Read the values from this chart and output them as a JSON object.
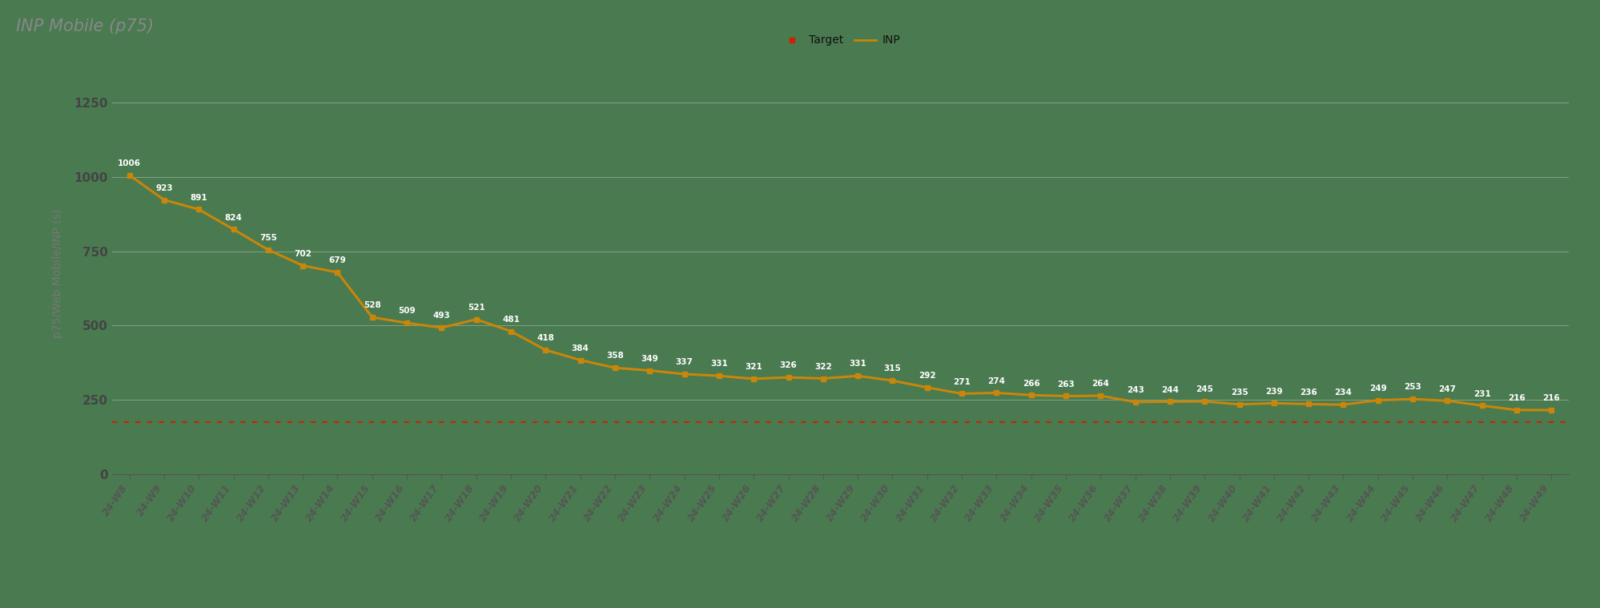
{
  "title": "INP Mobile (p75)",
  "ylabel": "p75/Web Mobile/INP (s)",
  "background_color": "#4a7a50",
  "target_value": 175,
  "weeks": [
    "24-W8",
    "24-W9",
    "24-W10",
    "24-W11",
    "24-W12",
    "24-W13",
    "24-W14",
    "24-W15",
    "24-W16",
    "24-W17",
    "24-W18",
    "24-W19",
    "24-W20",
    "24-W21",
    "24-W22",
    "24-W23",
    "24-W24",
    "24-W25",
    "24-W26",
    "24-W27",
    "24-W28",
    "24-W29",
    "24-W30",
    "24-W31",
    "24-W32",
    "24-W33",
    "24-W34",
    "24-W35",
    "24-W36",
    "24-W37",
    "24-W38",
    "24-W39",
    "24-W40",
    "24-W41",
    "24-W42",
    "24-W43",
    "24-W44",
    "24-W45",
    "24-W46",
    "24-W47",
    "24-W48",
    "24-W49"
  ],
  "inp_values": [
    1006,
    923,
    891,
    824,
    755,
    702,
    679,
    528,
    509,
    493,
    521,
    481,
    418,
    384,
    358,
    349,
    337,
    331,
    321,
    326,
    322,
    331,
    315,
    292,
    271,
    274,
    266,
    263,
    264,
    243,
    244,
    245,
    235,
    239,
    236,
    234,
    249,
    253,
    247,
    231,
    216,
    216
  ],
  "line_color": "#c8860a",
  "marker_color": "#c8860a",
  "target_color": "#cc2200",
  "ylim": [
    0,
    1350
  ],
  "yticks": [
    0,
    250,
    500,
    750,
    1000,
    1250
  ],
  "annotation_color": "#ffffff",
  "title_color": "#888888",
  "axis_label_color": "#777777",
  "tick_label_color": "#444444",
  "grid_line_color": "#ffffff",
  "grid_alpha": 0.35
}
